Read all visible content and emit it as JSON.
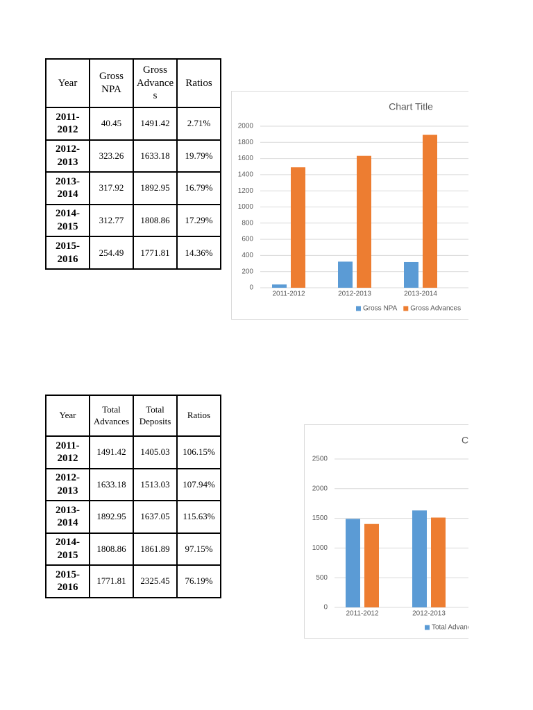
{
  "tables": [
    {
      "header": [
        "Year",
        "Gross NPA",
        "Gross Advances",
        "Ratios"
      ],
      "rows": [
        [
          "2011-2012",
          "40.45",
          "1491.42",
          "2.71%"
        ],
        [
          "2012-2013",
          "323.26",
          "1633.18",
          "19.79%"
        ],
        [
          "2013-2014",
          "317.92",
          "1892.95",
          "16.79%"
        ],
        [
          "2014-2015",
          "312.77",
          "1808.86",
          "17.29%"
        ],
        [
          "2015-2016",
          "254.49",
          "1771.81",
          "14.36%"
        ]
      ]
    },
    {
      "header": [
        "Year",
        "Total Advances",
        "Total Deposits",
        "Ratios"
      ],
      "rows": [
        [
          "2011-2012",
          "1491.42",
          "1405.03",
          "106.15%"
        ],
        [
          "2012-2013",
          "1633.18",
          "1513.03",
          "107.94%"
        ],
        [
          "2013-2014",
          "1892.95",
          "1637.05",
          "115.63%"
        ],
        [
          "2014-2015",
          "1808.86",
          "1861.89",
          "97.15%"
        ],
        [
          "2015-2016",
          "1771.81",
          "2325.45",
          "76.19%"
        ]
      ]
    }
  ],
  "charts": [
    {
      "type": "bar",
      "title": "Chart Title",
      "categories": [
        "2011-2012",
        "2012-2013",
        "2013-2014"
      ],
      "series": [
        {
          "name": "Gross NPA",
          "color": "#5b9bd5",
          "values": [
            40.45,
            323.26,
            317.92
          ]
        },
        {
          "name": "Gross Advances",
          "color": "#ed7d31",
          "values": [
            1491.42,
            1633.18,
            1892.95
          ]
        }
      ],
      "ylim": [
        0,
        2000
      ],
      "yticks": [
        0,
        200,
        400,
        600,
        800,
        1000,
        1200,
        1400,
        1600,
        1800,
        2000
      ],
      "grid": true,
      "legend": "bottom"
    },
    {
      "type": "bar",
      "title": "Chart Title",
      "categories": [
        "2011-2012",
        "2012-2013"
      ],
      "series": [
        {
          "name": "Total Advances",
          "color": "#5b9bd5",
          "values": [
            1491.42,
            1633.18
          ]
        },
        {
          "name": "Total Deposits",
          "color": "#ed7d31",
          "values": [
            1405.03,
            1513.03
          ]
        }
      ],
      "ylim": [
        0,
        2500
      ],
      "yticks": [
        0,
        500,
        1000,
        1500,
        2000,
        2500
      ],
      "grid": true,
      "legend": "bottom"
    }
  ]
}
